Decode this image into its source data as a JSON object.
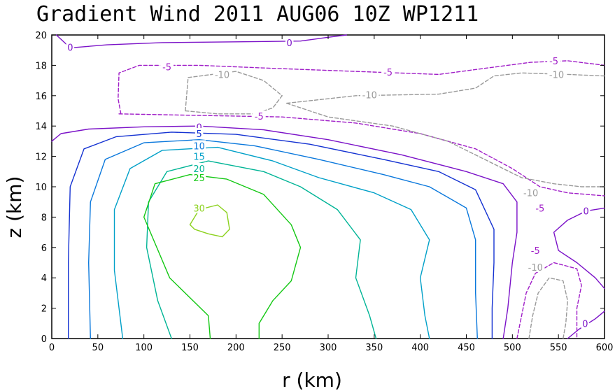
{
  "chart_data": {
    "type": "contour",
    "title": "Gradient Wind 2011 AUG06 10Z  WP1211",
    "xlabel": "r (km)",
    "ylabel": "z (km)",
    "xlim": [
      0,
      600
    ],
    "ylim": [
      0,
      20
    ],
    "xticks": [
      0,
      50,
      100,
      150,
      200,
      250,
      300,
      350,
      400,
      450,
      500,
      550,
      600
    ],
    "yticks": [
      0,
      2,
      4,
      6,
      8,
      10,
      12,
      14,
      16,
      18,
      20
    ],
    "colors": {
      "c0": "#7b12c8",
      "cm5": "#a01ec8",
      "cm10": "#9a9a9a",
      "c5": "#1432d2",
      "c10": "#0a78dc",
      "c15": "#00a0c8",
      "c20": "#00b496",
      "c25": "#14c814",
      "c30": "#8cd21e"
    },
    "contours": [
      {
        "id": "c0-top",
        "level": 0,
        "color": "c0",
        "dashed": false,
        "points": [
          [
            5,
            20
          ],
          [
            20,
            19.15
          ],
          [
            60,
            19.35
          ],
          [
            120,
            19.5
          ],
          [
            200,
            19.55
          ],
          [
            270,
            19.6
          ],
          [
            300,
            19.85
          ],
          [
            320,
            20
          ]
        ]
      },
      {
        "id": "c0-main",
        "level": 0,
        "color": "c0",
        "dashed": false,
        "points": [
          [
            0,
            13
          ],
          [
            10,
            13.5
          ],
          [
            40,
            13.8
          ],
          [
            100,
            13.95
          ],
          [
            160,
            14
          ],
          [
            230,
            13.75
          ],
          [
            300,
            13.1
          ],
          [
            380,
            12.1
          ],
          [
            450,
            11
          ],
          [
            490,
            10.2
          ],
          [
            505,
            9
          ],
          [
            505,
            7
          ],
          [
            500,
            5
          ],
          [
            495,
            2
          ],
          [
            490,
            0
          ]
        ]
      },
      {
        "id": "c0-right",
        "level": 0,
        "color": "c0",
        "dashed": false,
        "points": [
          [
            600,
            8.6
          ],
          [
            580,
            8.4
          ],
          [
            560,
            7.8
          ],
          [
            545,
            7
          ],
          [
            550,
            5.8
          ],
          [
            570,
            5
          ],
          [
            590,
            4
          ],
          [
            600,
            3.3
          ]
        ]
      },
      {
        "id": "c0-br",
        "level": 0,
        "color": "c0",
        "dashed": false,
        "points": [
          [
            560,
            0
          ],
          [
            572,
            0.6
          ],
          [
            590,
            1.3
          ],
          [
            600,
            1.8
          ]
        ]
      },
      {
        "id": "cm5-top",
        "level": -5,
        "color": "cm5",
        "dashed": true,
        "points": [
          [
            75,
            14.8
          ],
          [
            72,
            15.8
          ],
          [
            73,
            17.5
          ],
          [
            95,
            18
          ],
          [
            160,
            18
          ],
          [
            240,
            17.8
          ],
          [
            330,
            17.6
          ],
          [
            420,
            17.4
          ],
          [
            470,
            17.8
          ],
          [
            520,
            18.2
          ],
          [
            560,
            18.3
          ],
          [
            600,
            18
          ]
        ]
      },
      {
        "id": "cm5-band",
        "level": -5,
        "color": "cm5",
        "dashed": true,
        "points": [
          [
            73,
            14.8
          ],
          [
            160,
            14.7
          ],
          [
            250,
            14.6
          ],
          [
            330,
            14.2
          ],
          [
            400,
            13.5
          ],
          [
            460,
            12.5
          ],
          [
            500,
            11.2
          ],
          [
            530,
            10
          ],
          [
            560,
            9.6
          ],
          [
            600,
            9.4
          ]
        ]
      },
      {
        "id": "cm5-right",
        "level": -5,
        "color": "cm5",
        "dashed": true,
        "points": [
          [
            505,
            0
          ],
          [
            510,
            1.5
          ],
          [
            515,
            3
          ],
          [
            525,
            4.3
          ],
          [
            545,
            5
          ],
          [
            570,
            4.6
          ],
          [
            575,
            3.5
          ],
          [
            570,
            2
          ],
          [
            570,
            0
          ]
        ]
      },
      {
        "id": "cm10-left",
        "level": -10,
        "color": "cm10",
        "dashed": true,
        "points": [
          [
            145,
            15
          ],
          [
            148,
            17.2
          ],
          [
            200,
            17.6
          ],
          [
            230,
            17
          ],
          [
            250,
            16
          ],
          [
            240,
            15.2
          ],
          [
            220,
            14.8
          ],
          [
            180,
            14.8
          ],
          [
            145,
            15
          ]
        ]
      },
      {
        "id": "cm10-band",
        "level": -10,
        "color": "cm10",
        "dashed": true,
        "points": [
          [
            255,
            15.5
          ],
          [
            330,
            16
          ],
          [
            420,
            16.1
          ],
          [
            460,
            16.5
          ],
          [
            480,
            17.3
          ],
          [
            510,
            17.5
          ],
          [
            560,
            17.4
          ],
          [
            600,
            17.3
          ]
        ]
      },
      {
        "id": "cm10-lower",
        "level": -10,
        "color": "cm10",
        "dashed": true,
        "points": [
          [
            255,
            15.5
          ],
          [
            300,
            14.6
          ],
          [
            370,
            14
          ],
          [
            430,
            13
          ],
          [
            480,
            11.5
          ],
          [
            510,
            10.6
          ],
          [
            545,
            10.2
          ],
          [
            575,
            10
          ],
          [
            600,
            10
          ]
        ]
      },
      {
        "id": "cm10-right",
        "level": -10,
        "color": "cm10",
        "dashed": true,
        "points": [
          [
            518,
            0
          ],
          [
            522,
            1.5
          ],
          [
            528,
            3
          ],
          [
            540,
            4
          ],
          [
            555,
            3.8
          ],
          [
            560,
            2.5
          ],
          [
            558,
            1
          ],
          [
            555,
            0
          ]
        ]
      },
      {
        "id": "c5",
        "level": 5,
        "color": "c5",
        "dashed": false,
        "points": [
          [
            18,
            0
          ],
          [
            18,
            5
          ],
          [
            20,
            10
          ],
          [
            35,
            12.5
          ],
          [
            70,
            13.3
          ],
          [
            130,
            13.6
          ],
          [
            200,
            13.45
          ],
          [
            280,
            12.8
          ],
          [
            360,
            11.8
          ],
          [
            420,
            11
          ],
          [
            460,
            9.8
          ],
          [
            480,
            7.2
          ],
          [
            480,
            5
          ],
          [
            478,
            2
          ],
          [
            478,
            0
          ]
        ]
      },
      {
        "id": "c10",
        "level": 10,
        "color": "c10",
        "dashed": false,
        "points": [
          [
            42,
            0
          ],
          [
            40,
            5
          ],
          [
            42,
            9
          ],
          [
            58,
            11.8
          ],
          [
            100,
            12.9
          ],
          [
            160,
            13.1
          ],
          [
            220,
            12.7
          ],
          [
            290,
            11.8
          ],
          [
            360,
            10.8
          ],
          [
            410,
            10
          ],
          [
            450,
            8.6
          ],
          [
            460,
            6.5
          ],
          [
            460,
            3
          ],
          [
            462,
            0
          ]
        ]
      },
      {
        "id": "c15",
        "level": 15,
        "color": "c15",
        "dashed": false,
        "points": [
          [
            77,
            0
          ],
          [
            68,
            4.5
          ],
          [
            68,
            8.5
          ],
          [
            85,
            11.2
          ],
          [
            120,
            12.4
          ],
          [
            180,
            12.6
          ],
          [
            240,
            11.7
          ],
          [
            290,
            10.6
          ],
          [
            350,
            9.6
          ],
          [
            390,
            8.5
          ],
          [
            410,
            6.5
          ],
          [
            400,
            4
          ],
          [
            405,
            1.5
          ],
          [
            410,
            0
          ]
        ]
      },
      {
        "id": "c20",
        "level": 20,
        "color": "c20",
        "dashed": false,
        "points": [
          [
            130,
            0
          ],
          [
            115,
            2.5
          ],
          [
            103,
            6
          ],
          [
            105,
            9
          ],
          [
            125,
            11
          ],
          [
            170,
            11.7
          ],
          [
            230,
            11
          ],
          [
            270,
            10
          ],
          [
            310,
            8.5
          ],
          [
            335,
            6.5
          ],
          [
            330,
            4
          ],
          [
            345,
            1.5
          ],
          [
            352,
            0
          ]
        ]
      },
      {
        "id": "c25",
        "level": 25,
        "color": "c25",
        "dashed": false,
        "points": [
          [
            172,
            0
          ],
          [
            170,
            1.5
          ],
          [
            128,
            4
          ],
          [
            100,
            8
          ],
          [
            112,
            10.2
          ],
          [
            150,
            10.8
          ],
          [
            190,
            10.5
          ],
          [
            230,
            9.5
          ],
          [
            260,
            7.5
          ],
          [
            270,
            6
          ],
          [
            260,
            3.8
          ],
          [
            240,
            2.5
          ],
          [
            225,
            1
          ],
          [
            225,
            0
          ]
        ]
      },
      {
        "id": "c30",
        "level": 30,
        "color": "c30",
        "dashed": false,
        "points": [
          [
            150,
            7.5
          ],
          [
            160,
            8.5
          ],
          [
            180,
            8.8
          ],
          [
            190,
            8.3
          ],
          [
            193,
            7.2
          ],
          [
            185,
            6.7
          ],
          [
            170,
            6.9
          ],
          [
            155,
            7.2
          ],
          [
            150,
            7.5
          ]
        ]
      }
    ],
    "labels": [
      {
        "text": "0",
        "x": 20,
        "y": 19.2,
        "color": "c0"
      },
      {
        "text": "0",
        "x": 258,
        "y": 19.5,
        "color": "c0"
      },
      {
        "text": "0",
        "x": 160,
        "y": 13.95,
        "color": "c0"
      },
      {
        "text": "0",
        "x": 580,
        "y": 8.4,
        "color": "c0"
      },
      {
        "text": "0",
        "x": 579,
        "y": 1,
        "color": "c0"
      },
      {
        "text": "-5",
        "x": 125,
        "y": 17.9,
        "color": "cm5"
      },
      {
        "text": "-5",
        "x": 365,
        "y": 17.55,
        "color": "cm5"
      },
      {
        "text": "-5",
        "x": 545,
        "y": 18.3,
        "color": "cm5"
      },
      {
        "text": "-5",
        "x": 225,
        "y": 14.65,
        "color": "cm5"
      },
      {
        "text": "-5",
        "x": 530,
        "y": 8.6,
        "color": "cm5"
      },
      {
        "text": "-5",
        "x": 525,
        "y": 5.8,
        "color": "cm5"
      },
      {
        "text": "-10",
        "x": 185,
        "y": 17.4,
        "color": "cm10"
      },
      {
        "text": "-10",
        "x": 345,
        "y": 16.05,
        "color": "cm10"
      },
      {
        "text": "-10",
        "x": 548,
        "y": 17.4,
        "color": "cm10"
      },
      {
        "text": "-10",
        "x": 520,
        "y": 9.6,
        "color": "cm10"
      },
      {
        "text": "-10",
        "x": 525,
        "y": 4.7,
        "color": "cm10"
      },
      {
        "text": "5",
        "x": 160,
        "y": 13.5,
        "color": "c5"
      },
      {
        "text": "10",
        "x": 160,
        "y": 12.7,
        "color": "c10"
      },
      {
        "text": "15",
        "x": 160,
        "y": 12,
        "color": "c15"
      },
      {
        "text": "20",
        "x": 160,
        "y": 11.2,
        "color": "c20"
      },
      {
        "text": "25",
        "x": 160,
        "y": 10.6,
        "color": "c25"
      },
      {
        "text": "30",
        "x": 160,
        "y": 8.6,
        "color": "c30"
      }
    ]
  }
}
